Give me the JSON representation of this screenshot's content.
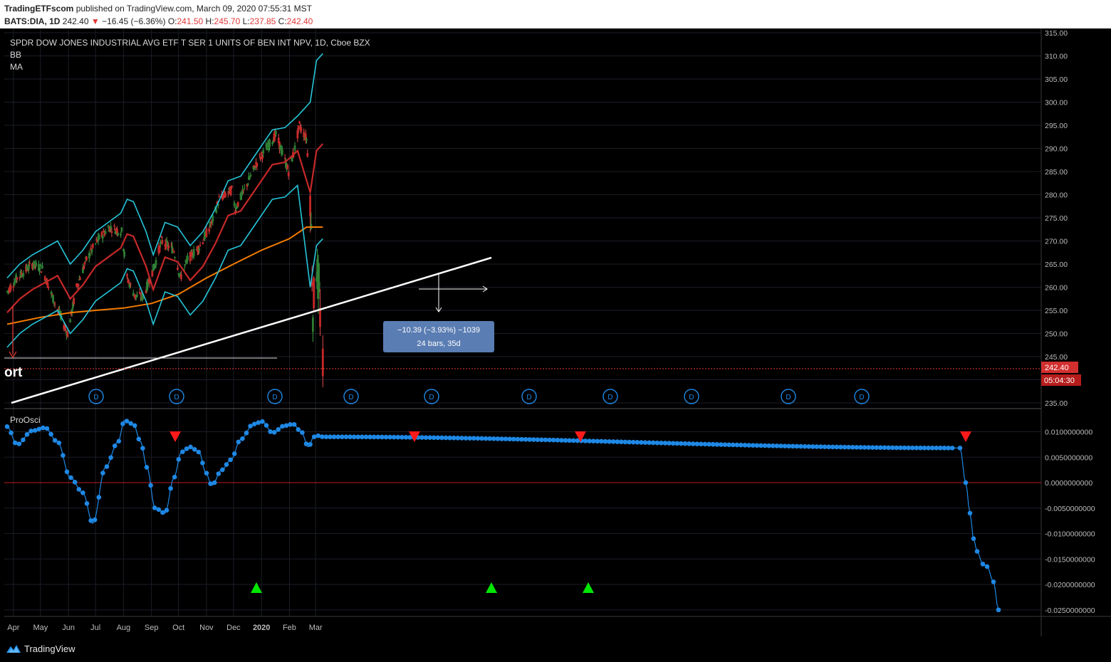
{
  "header": {
    "publisher": "TradingETFscom",
    "published_text": "published on TradingView.com, March 09, 2020 07:55:31 MST",
    "symbol": "BATS:DIA, 1D",
    "last": "242.40",
    "change": "−16.45 (−6.36%)",
    "o_label": "O:",
    "o": "241.50",
    "h_label": "H:",
    "h": "245.70",
    "l_label": "L:",
    "l": "237.85",
    "c_label": "C:",
    "c": "242.40"
  },
  "main_pane": {
    "title": "SPDR DOW JONES INDUSTRIAL AVG ETF T SER 1 UNITS OF BEN INT NPV, 1D, Cboe BZX",
    "legend": [
      "BB",
      "MA"
    ],
    "price_badge": "242.40",
    "timer_badge": "05:04:30",
    "support_label": "ort",
    "measure_line1": "−10.39 (−3.93%) −1039",
    "measure_line2": "24 bars, 35d",
    "dividend_marker": "D"
  },
  "osc_pane": {
    "title": "ProOsci"
  },
  "footer": {
    "brand": "TradingView"
  },
  "chart_data": [
    {
      "type": "line",
      "title": "SPDR DOW JONES INDUSTRIAL AVG ETF T SER 1 UNITS OF BEN INT NPV, 1D, Cboe BZX",
      "x_ticks": [
        "Apr",
        "May",
        "Jun",
        "Jul",
        "Aug",
        "Sep",
        "Oct",
        "Nov",
        "Dec",
        "2020",
        "Feb",
        "Mar"
      ],
      "y_ticks": [
        "315.00",
        "310.00",
        "305.00",
        "300.00",
        "295.00",
        "290.00",
        "285.00",
        "280.00",
        "275.00",
        "270.00",
        "265.00",
        "260.00",
        "255.00",
        "250.00",
        "245.00",
        "240.00",
        "235.00"
      ],
      "ylim": [
        234,
        316
      ],
      "series": [
        {
          "name": "BB",
          "values": [
            [
              "2019-03-25",
              262
            ],
            [
              "2019-04-08",
              265
            ],
            [
              "2019-04-22",
              267
            ],
            [
              "2019-05-06",
              268.5
            ],
            [
              "2019-05-20",
              270
            ],
            [
              "2019-06-03",
              265
            ],
            [
              "2019-06-17",
              268
            ],
            [
              "2019-07-01",
              272
            ],
            [
              "2019-07-15",
              274
            ],
            [
              "2019-07-29",
              276
            ],
            [
              "2019-08-05",
              279
            ],
            [
              "2019-08-12",
              278.5
            ],
            [
              "2019-08-26",
              272
            ],
            [
              "2019-09-03",
              267
            ],
            [
              "2019-09-16",
              274
            ],
            [
              "2019-09-30",
              273
            ],
            [
              "2019-10-14",
              269
            ],
            [
              "2019-10-28",
              272
            ],
            [
              "2019-11-11",
              277
            ],
            [
              "2019-11-25",
              283
            ],
            [
              "2019-12-09",
              284
            ],
            [
              "2019-12-23",
              288
            ],
            [
              "2020-01-13",
              294
            ],
            [
              "2020-01-27",
              294.5
            ],
            [
              "2020-02-10",
              297
            ],
            [
              "2020-02-24",
              300
            ],
            [
              "2020-03-02",
              309
            ],
            [
              "2020-03-09",
              310.5
            ]
          ]
        },
        {
          "name": "MA",
          "values": [
            [
              "2019-03-25",
              252
            ],
            [
              "2019-05-01",
              253.5
            ],
            [
              "2019-06-03",
              254.5
            ],
            [
              "2019-07-01",
              255
            ],
            [
              "2019-08-01",
              255.5
            ],
            [
              "2019-09-01",
              256.5
            ],
            [
              "2019-10-01",
              258.5
            ],
            [
              "2019-11-01",
              262
            ],
            [
              "2019-12-01",
              265
            ],
            [
              "2020-01-01",
              268
            ],
            [
              "2020-02-01",
              270.5
            ],
            [
              "2020-02-20",
              273
            ],
            [
              "2020-03-09",
              273
            ]
          ]
        }
      ],
      "annotations": [
        {
          "type": "price_line",
          "value": 242.4
        },
        {
          "type": "measure",
          "text": "−10.39 (−3.93%) −1039 / 24 bars, 35d"
        }
      ]
    },
    {
      "type": "scatter",
      "title": "ProOsci",
      "y_ticks": [
        "0.0100000000",
        "0.0050000000",
        "0.0000000000",
        "-0.0050000000",
        "-0.0100000000",
        "-0.0150000000",
        "-0.0200000000",
        "-0.0250000000"
      ],
      "ylim": [
        -0.0265,
        0.0132
      ],
      "series": [
        {
          "values": [
            [
              "2019-03-25",
              0.011
            ],
            [
              "2019-04-05",
              0.0075
            ],
            [
              "2019-04-22",
              0.0102
            ],
            [
              "2019-05-06",
              0.0108
            ],
            [
              "2019-05-20",
              0.008
            ],
            [
              "2019-06-03",
              0.001
            ],
            [
              "2019-06-17",
              -0.002
            ],
            [
              "2019-06-28",
              -0.008
            ],
            [
              "2019-07-12",
              0.003
            ],
            [
              "2019-07-26",
              0.008
            ],
            [
              "2019-08-02",
              0.0122
            ],
            [
              "2019-08-12",
              0.0115
            ],
            [
              "2019-08-20",
              0.008
            ],
            [
              "2019-08-27",
              0.003
            ],
            [
              "2019-09-05",
              -0.005
            ],
            [
              "2019-09-16",
              -0.006
            ],
            [
              "2019-09-26",
              0.001
            ],
            [
              "2019-10-04",
              0.006
            ],
            [
              "2019-10-14",
              0.007
            ],
            [
              "2019-10-24",
              0.006
            ],
            [
              "2019-10-31",
              0.002
            ],
            [
              "2019-11-07",
              -0.0005
            ],
            [
              "2019-11-18",
              0.0025
            ],
            [
              "2019-11-28",
              0.0045
            ],
            [
              "2019-12-09",
              0.0085
            ],
            [
              "2019-12-23",
              0.0115
            ],
            [
              "2020-01-02",
              0.012
            ],
            [
              "2020-01-13",
              0.0098
            ],
            [
              "2020-01-27",
              0.0112
            ],
            [
              "2020-02-05",
              0.0115
            ],
            [
              "2020-02-14",
              0.01
            ],
            [
              "2020-02-22",
              0.007
            ],
            [
              "2020-02-28",
              0.009
            ],
            [
              "2020-03-04",
              0.0092
            ],
            [
              "2020-03-09",
              0.009
            ]
          ]
        }
      ],
      "signals": {
        "sell_count": 5,
        "buy_count": 3
      },
      "zero_line": 0
    }
  ]
}
